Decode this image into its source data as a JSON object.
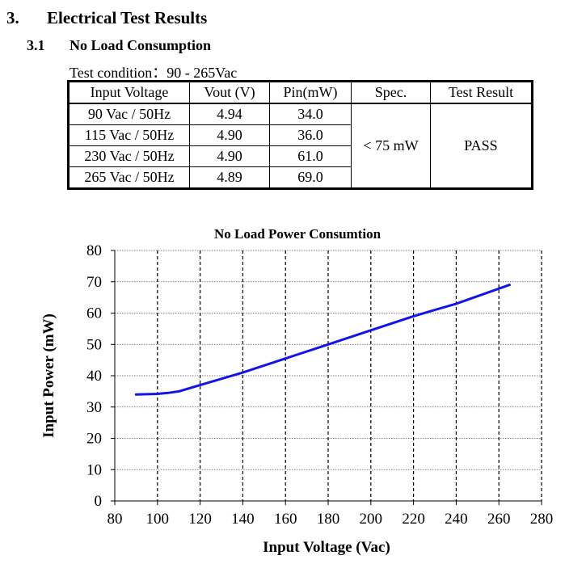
{
  "section": {
    "number": "3.",
    "title": "Electrical Test Results"
  },
  "subsection": {
    "number": "3.1",
    "title": "No Load Consumption"
  },
  "test_condition": "Test condition：90 - 265Vac",
  "table": {
    "headers": [
      "Input Voltage",
      "Vout (V)",
      "Pin(mW)",
      "Spec.",
      "Test Result"
    ],
    "rows": [
      [
        "90 Vac / 50Hz",
        "4.94",
        "34.0"
      ],
      [
        "115 Vac / 50Hz",
        "4.90",
        "36.0"
      ],
      [
        "230 Vac / 50Hz",
        "4.90",
        "61.0"
      ],
      [
        "265 Vac / 50Hz",
        "4.89",
        "69.0"
      ]
    ],
    "spec": "< 75 mW",
    "result": "PASS"
  },
  "chart_data": {
    "type": "line",
    "title": "No Load Power Consumtion",
    "xlabel": "Input Voltage (Vac)",
    "ylabel": "Input Power (mW)",
    "xlim": [
      80,
      280
    ],
    "ylim": [
      0,
      80
    ],
    "xticks": [
      80,
      100,
      120,
      140,
      160,
      180,
      200,
      220,
      240,
      260,
      280
    ],
    "yticks": [
      0,
      10,
      20,
      30,
      40,
      50,
      60,
      70,
      80
    ],
    "grid": {
      "x": "dashed",
      "y": "dotted"
    },
    "line_color": "#1414e6",
    "series": [
      {
        "x": [
          90,
          100,
          105,
          110,
          115,
          120,
          140,
          160,
          180,
          200,
          220,
          230,
          240,
          265
        ],
        "values": [
          34.0,
          34.2,
          34.5,
          35.0,
          36.0,
          37.0,
          41.0,
          45.5,
          50.0,
          54.5,
          59.0,
          61.0,
          63.0,
          69.0
        ]
      }
    ]
  }
}
